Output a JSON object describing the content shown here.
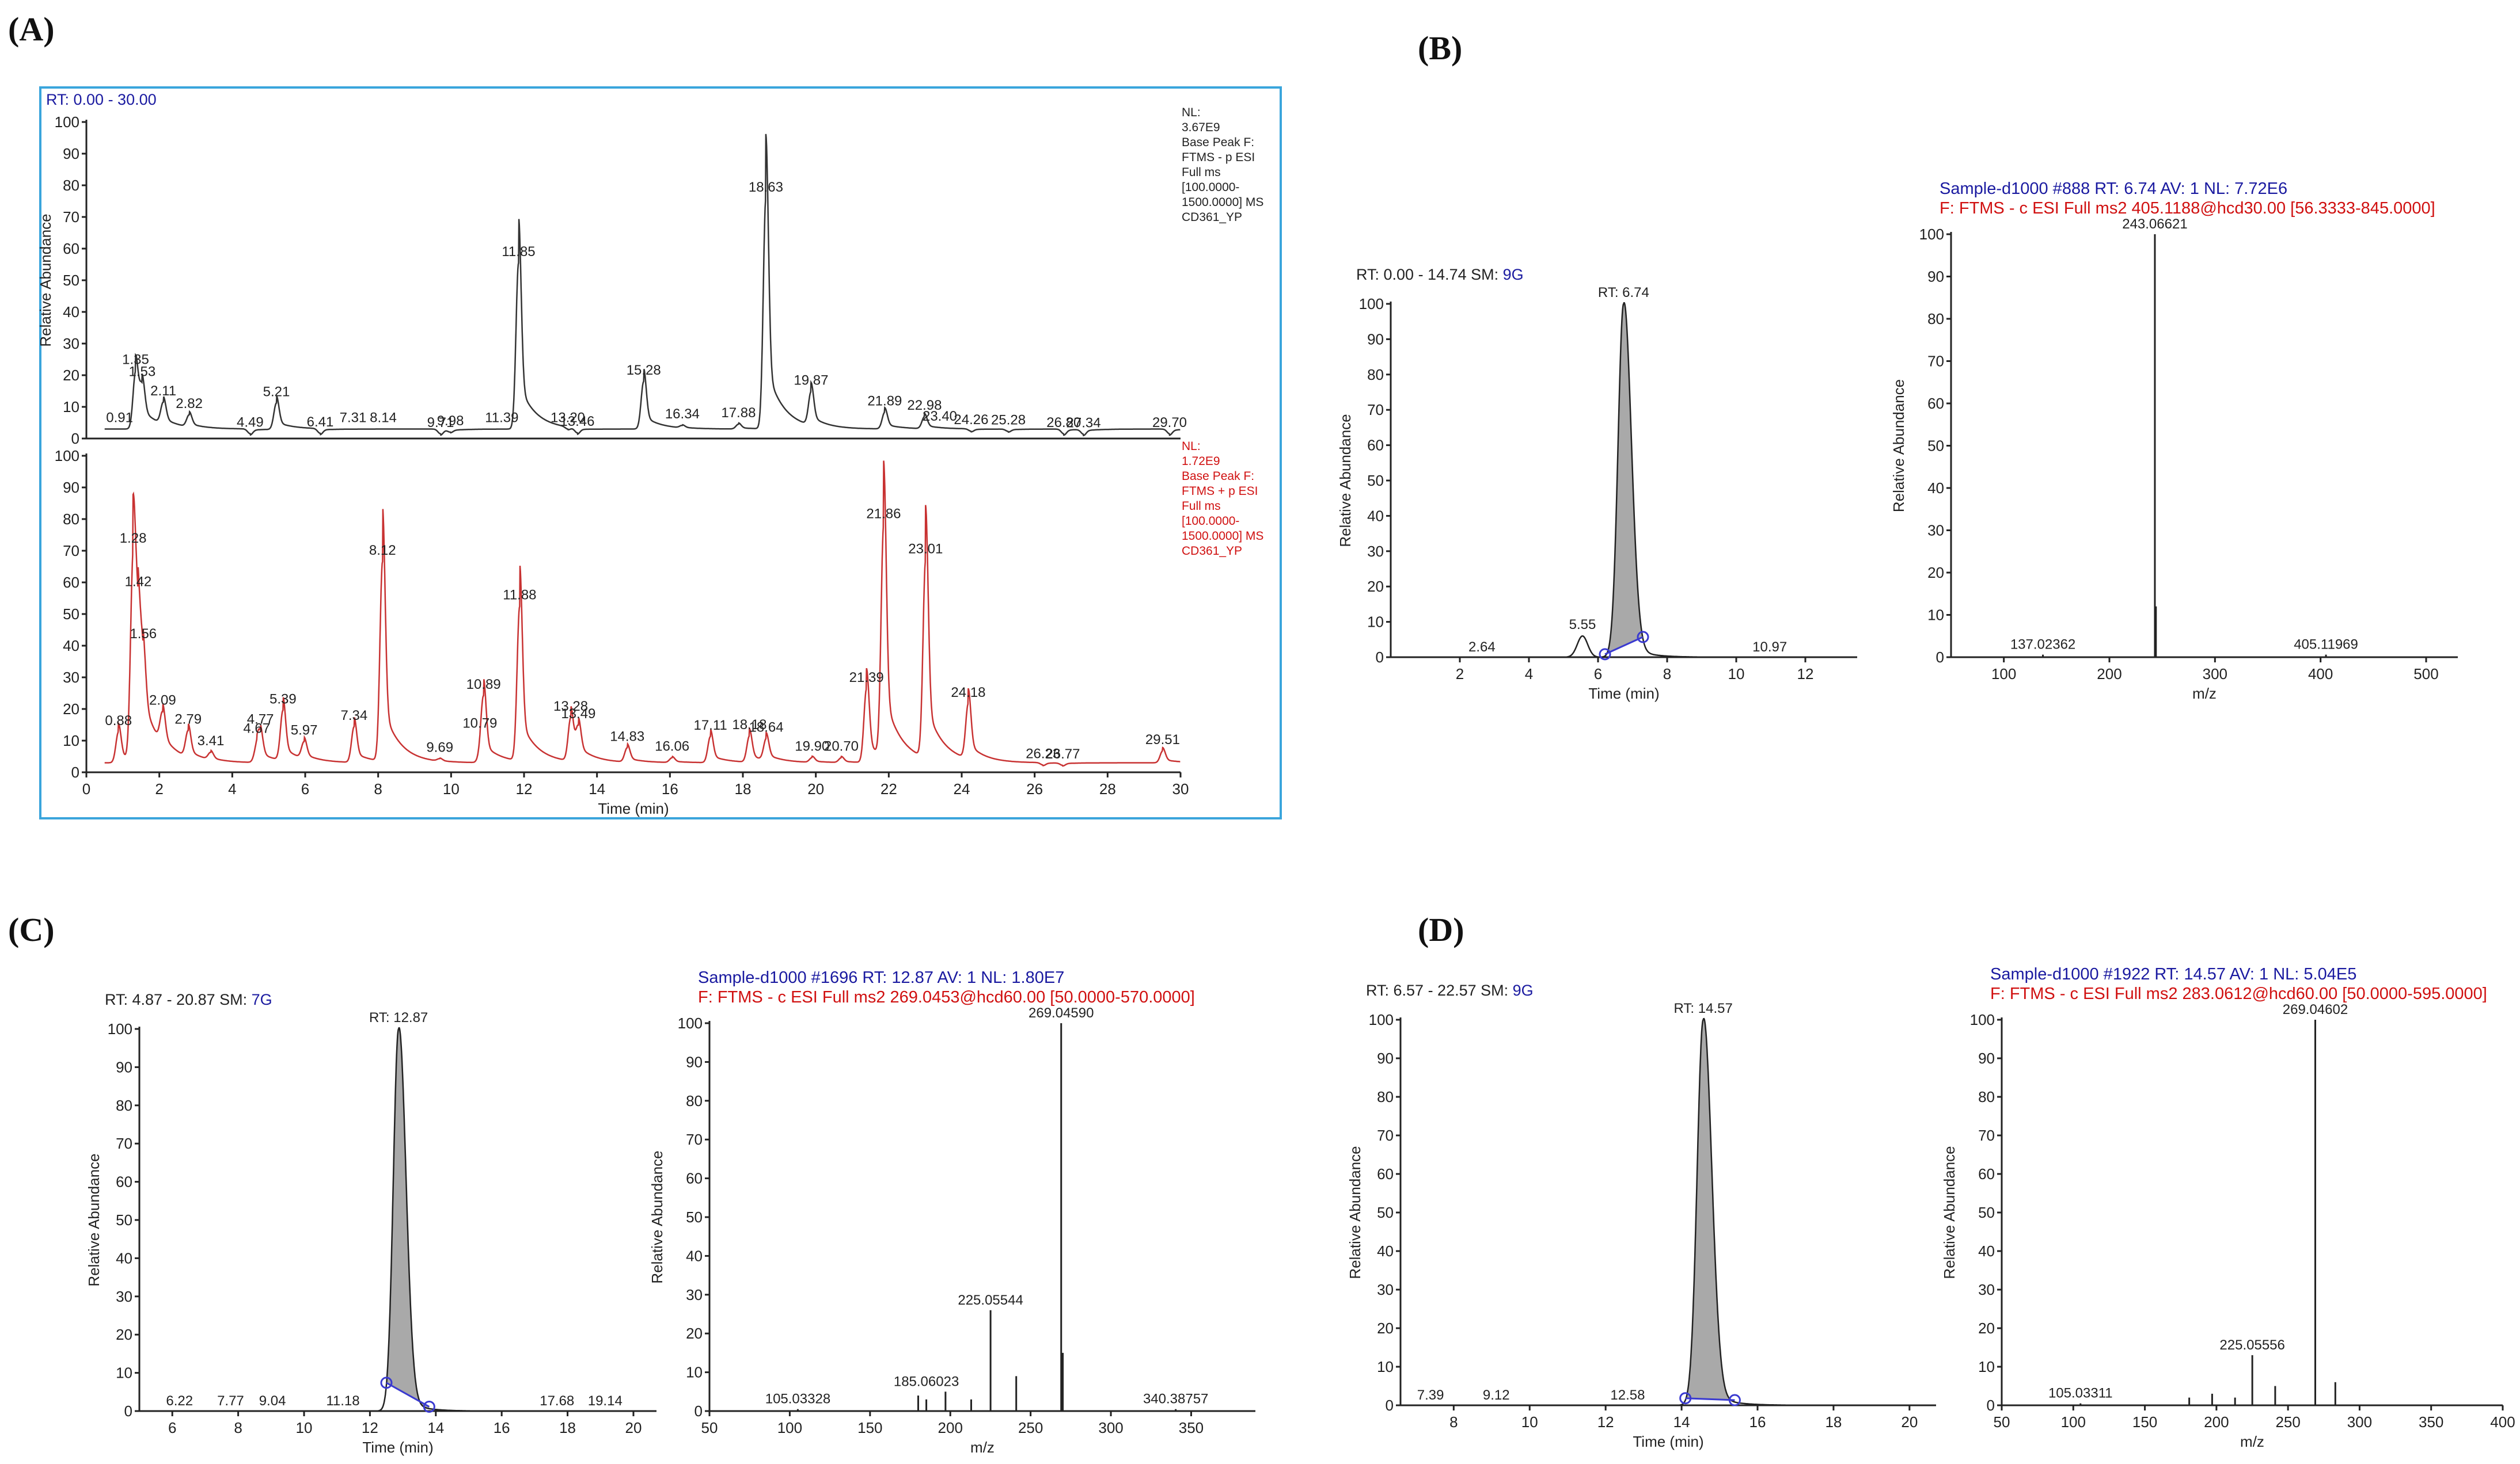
{
  "panel_labels": [
    "(A)",
    "(B)",
    "(C)",
    "(D)"
  ],
  "chart_data": [
    {
      "id": "A_top",
      "type": "line",
      "range_text": "RT: 0.00 - 30.00",
      "ylabel": "Relative Abundance",
      "xlabel": "",
      "xlim": [
        0,
        30
      ],
      "ylim": [
        0,
        100
      ],
      "yticks": [
        0,
        10,
        20,
        30,
        40,
        50,
        60,
        70,
        80,
        90,
        100
      ],
      "info_lines": [
        "NL:",
        "3.67E9",
        "Base Peak F:",
        "FTMS - p ESI",
        "Full ms",
        "[100.0000-",
        "1500.0000]  MS",
        "CD361_YP"
      ],
      "color": "#333333",
      "baseline": 3,
      "peaks": [
        [
          0.91,
          3
        ],
        [
          1.35,
          27
        ],
        [
          1.53,
          17
        ],
        [
          2.11,
          12
        ],
        [
          2.82,
          8
        ],
        [
          4.49,
          1
        ],
        [
          5.21,
          14
        ],
        [
          6.41,
          1
        ],
        [
          7.31,
          3
        ],
        [
          8.14,
          3
        ],
        [
          9.71,
          1
        ],
        [
          9.98,
          2
        ],
        [
          11.39,
          3
        ],
        [
          11.85,
          73
        ],
        [
          13.2,
          2
        ],
        [
          13.46,
          1
        ],
        [
          15.28,
          23
        ],
        [
          16.34,
          4
        ],
        [
          17.88,
          5
        ],
        [
          18.63,
          100
        ],
        [
          19.87,
          17
        ],
        [
          21.89,
          10
        ],
        [
          22.98,
          8
        ],
        [
          23.4,
          3
        ],
        [
          24.26,
          2
        ],
        [
          25.28,
          2
        ],
        [
          26.8,
          1
        ],
        [
          27.34,
          1
        ],
        [
          29.7,
          1
        ]
      ],
      "labels": [
        [
          0.91,
          "0.91"
        ],
        [
          1.35,
          "1.35"
        ],
        [
          1.53,
          "1.53"
        ],
        [
          2.11,
          "2.11"
        ],
        [
          2.82,
          "2.82"
        ],
        [
          4.49,
          "4.49"
        ],
        [
          5.21,
          "5.21"
        ],
        [
          6.41,
          "6.41"
        ],
        [
          7.31,
          "7.31"
        ],
        [
          8.14,
          "8.14"
        ],
        [
          9.71,
          "9.71"
        ],
        [
          9.98,
          "9.98"
        ],
        [
          11.39,
          "11.39"
        ],
        [
          11.85,
          "11.85"
        ],
        [
          13.2,
          "13.20"
        ],
        [
          13.46,
          "13.46"
        ],
        [
          15.28,
          "15.28"
        ],
        [
          16.34,
          "16.34"
        ],
        [
          17.88,
          "17.88"
        ],
        [
          18.63,
          "18.63"
        ],
        [
          19.87,
          "19.87"
        ],
        [
          21.89,
          "21.89"
        ],
        [
          22.98,
          "22.98"
        ],
        [
          23.4,
          "23.40"
        ],
        [
          24.26,
          "24.26"
        ],
        [
          25.28,
          "25.28"
        ],
        [
          26.8,
          "26.80"
        ],
        [
          27.34,
          "27.34"
        ],
        [
          29.7,
          "29.70"
        ]
      ]
    },
    {
      "id": "A_bottom",
      "type": "line",
      "range_text": "",
      "ylabel": "",
      "xlabel": "Time (min)",
      "xlim": [
        0,
        30
      ],
      "ylim": [
        0,
        100
      ],
      "xticks": [
        0,
        2,
        4,
        6,
        8,
        10,
        12,
        14,
        16,
        18,
        20,
        22,
        24,
        26,
        28,
        30
      ],
      "yticks": [
        0,
        10,
        20,
        30,
        40,
        50,
        60,
        70,
        80,
        90,
        100
      ],
      "info_lines": [
        "NL:",
        "1.72E9",
        "Base Peak F:",
        "FTMS + p ESI",
        "Full ms",
        "[100.0000-",
        "1500.0000]  MS",
        "CD361_YP"
      ],
      "color": "#c83232",
      "baseline": 3,
      "peaks": [
        [
          0.88,
          16
        ],
        [
          1.28,
          86
        ],
        [
          1.42,
          42
        ],
        [
          1.56,
          26
        ],
        [
          2.09,
          16
        ],
        [
          2.79,
          14
        ],
        [
          3.41,
          6
        ],
        [
          4.67,
          9
        ],
        [
          4.77,
          13
        ],
        [
          5.39,
          24
        ],
        [
          5.97,
          10
        ],
        [
          7.34,
          18
        ],
        [
          8.12,
          87
        ],
        [
          9.69,
          4
        ],
        [
          10.79,
          5
        ],
        [
          10.89,
          30
        ],
        [
          11.88,
          68
        ],
        [
          13.28,
          21
        ],
        [
          13.49,
          15
        ],
        [
          14.83,
          9
        ],
        [
          16.06,
          5
        ],
        [
          17.11,
          14
        ],
        [
          18.18,
          14
        ],
        [
          18.64,
          12
        ],
        [
          19.9,
          5
        ],
        [
          20.7,
          5
        ],
        [
          21.39,
          34
        ],
        [
          21.86,
          100
        ],
        [
          23.01,
          86
        ],
        [
          24.18,
          26
        ],
        [
          26.23,
          2
        ],
        [
          26.77,
          2
        ],
        [
          29.51,
          8
        ]
      ],
      "labels": [
        [
          0.88,
          "0.88"
        ],
        [
          1.28,
          "1.28"
        ],
        [
          1.42,
          "1.42"
        ],
        [
          1.56,
          "1.56"
        ],
        [
          2.09,
          "2.09"
        ],
        [
          2.79,
          "2.79"
        ],
        [
          3.41,
          "3.41"
        ],
        [
          4.67,
          "4.67"
        ],
        [
          4.77,
          "4.77"
        ],
        [
          5.39,
          "5.39"
        ],
        [
          5.97,
          "5.97"
        ],
        [
          7.34,
          "7.34"
        ],
        [
          8.12,
          "8.12"
        ],
        [
          9.69,
          "9.69"
        ],
        [
          10.79,
          "10.79"
        ],
        [
          10.89,
          "10.89"
        ],
        [
          11.88,
          "11.88"
        ],
        [
          13.28,
          "13.28"
        ],
        [
          13.49,
          "13.49"
        ],
        [
          14.83,
          "14.83"
        ],
        [
          16.06,
          "16.06"
        ],
        [
          17.11,
          "17.11"
        ],
        [
          18.18,
          "18.18"
        ],
        [
          18.64,
          "18.64"
        ],
        [
          19.9,
          "19.90"
        ],
        [
          20.7,
          "20.70"
        ],
        [
          21.39,
          "21.39"
        ],
        [
          21.86,
          "21.86"
        ],
        [
          23.01,
          "23.01"
        ],
        [
          24.18,
          "24.18"
        ],
        [
          26.23,
          "26.23"
        ],
        [
          26.77,
          "26.77"
        ],
        [
          29.51,
          "29.51"
        ]
      ]
    },
    {
      "id": "B_chrom",
      "type": "line",
      "header": [
        {
          "text": "RT: 0.00 - 14.74",
          "color": "dark"
        },
        {
          "text": "   SM: ",
          "color": "dark"
        },
        {
          "text": "9G",
          "color": "blue"
        }
      ],
      "ylabel": "Relative Abundance",
      "xlabel": "Time (min)",
      "xlim": [
        0,
        13.5
      ],
      "ylim": [
        0,
        100
      ],
      "xticks": [
        2,
        4,
        6,
        8,
        10,
        12
      ],
      "yticks": [
        0,
        10,
        20,
        30,
        40,
        50,
        60,
        70,
        80,
        90,
        100
      ],
      "main_peak": {
        "rt": 6.74,
        "label": "RT: 6.74",
        "height": 100
      },
      "minor_peaks": [
        [
          5.55,
          6,
          "5.55"
        ]
      ],
      "floor_labels": [
        [
          2.64,
          "2.64"
        ],
        [
          10.97,
          "10.97"
        ]
      ],
      "integration": [
        6.2,
        7.3
      ]
    },
    {
      "id": "B_spec",
      "type": "bar",
      "header": [
        {
          "text": "Sample-d1000 #888   RT: ",
          "color": "blue"
        },
        {
          "text": "6.74",
          "color": "blue"
        },
        {
          "text": "   AV: ",
          "color": "blue"
        },
        {
          "text": "1",
          "color": "blue"
        },
        {
          "text": "   NL: ",
          "color": "blue"
        },
        {
          "text": "7.72E6",
          "color": "blue"
        }
      ],
      "subheader": "F:  FTMS - c ESI Full ms2 405.1188@hcd30.00 [56.3333-845.0000]",
      "ylabel": "Relative Abundance",
      "xlabel": "m/z",
      "xlim": [
        50,
        530
      ],
      "ylim": [
        0,
        100
      ],
      "xticks": [
        100,
        200,
        300,
        400,
        500
      ],
      "yticks": [
        0,
        10,
        20,
        30,
        40,
        50,
        60,
        70,
        80,
        90,
        100
      ],
      "sticks": [
        [
          243.06621,
          100
        ],
        [
          244.07,
          12
        ],
        [
          137.02362,
          0.6
        ],
        [
          405.11969,
          0.6
        ]
      ],
      "labels": [
        [
          243.06621,
          "243.06621",
          100
        ],
        [
          137.02362,
          "137.02362",
          0.6
        ],
        [
          405.11969,
          "405.11969",
          0.6
        ]
      ]
    },
    {
      "id": "C_chrom",
      "type": "line",
      "header": [
        {
          "text": "RT: 4.87 - 20.87",
          "color": "dark"
        },
        {
          "text": "   SM: ",
          "color": "dark"
        },
        {
          "text": "7G",
          "color": "blue"
        }
      ],
      "ylabel": "Relative Abundance",
      "xlabel": "Time (min)",
      "xlim": [
        5,
        20.7
      ],
      "ylim": [
        0,
        100
      ],
      "xticks": [
        6,
        8,
        10,
        12,
        14,
        16,
        18,
        20
      ],
      "yticks": [
        0,
        10,
        20,
        30,
        40,
        50,
        60,
        70,
        80,
        90,
        100
      ],
      "main_peak": {
        "rt": 12.87,
        "label": "RT: 12.87",
        "height": 100
      },
      "minor_peaks": [],
      "floor_labels": [
        [
          6.22,
          "6.22"
        ],
        [
          7.77,
          "7.77"
        ],
        [
          9.04,
          "9.04"
        ],
        [
          11.18,
          "11.18"
        ],
        [
          17.68,
          "17.68"
        ],
        [
          19.14,
          "19.14"
        ]
      ],
      "integration": [
        12.5,
        13.8
      ]
    },
    {
      "id": "C_spec",
      "type": "bar",
      "header": [
        {
          "text": "Sample-d1000 #1696   RT: ",
          "color": "blue"
        },
        {
          "text": "12.87",
          "color": "blue"
        },
        {
          "text": "   AV: ",
          "color": "blue"
        },
        {
          "text": "1",
          "color": "blue"
        },
        {
          "text": "   NL: ",
          "color": "blue"
        },
        {
          "text": "1.80E7",
          "color": "blue"
        }
      ],
      "subheader": "F:  FTMS - c ESI Full ms2 269.0453@hcd60.00 [50.0000-570.0000]",
      "ylabel": "Relative Abundance",
      "xlabel": "m/z",
      "xlim": [
        50,
        390
      ],
      "ylim": [
        0,
        100
      ],
      "xticks": [
        50,
        100,
        150,
        200,
        250,
        300,
        350
      ],
      "yticks": [
        0,
        10,
        20,
        30,
        40,
        50,
        60,
        70,
        80,
        90,
        100
      ],
      "sticks": [
        [
          269.0459,
          100
        ],
        [
          225.05544,
          26
        ],
        [
          270.05,
          15
        ],
        [
          241.05,
          9
        ],
        [
          185.06023,
          3
        ],
        [
          180.0,
          4
        ],
        [
          197.0,
          5
        ],
        [
          213.0,
          3
        ],
        [
          105.03328,
          0.5
        ],
        [
          340.38757,
          0.5
        ]
      ],
      "labels": [
        [
          269.0459,
          "269.04590",
          100
        ],
        [
          225.05544,
          "225.05544",
          26
        ],
        [
          185.06023,
          "185.06023",
          5
        ],
        [
          105.03328,
          "105.03328",
          0.5
        ],
        [
          340.38757,
          "340.38757",
          0.5
        ]
      ]
    },
    {
      "id": "D_chrom",
      "type": "line",
      "header": [
        {
          "text": "RT: 6.57 - 22.57",
          "color": "dark"
        },
        {
          "text": "   SM: ",
          "color": "dark"
        },
        {
          "text": "9G",
          "color": "blue"
        }
      ],
      "ylabel": "Relative Abundance",
      "xlabel": "Time (min)",
      "xlim": [
        6.6,
        20.7
      ],
      "ylim": [
        0,
        100
      ],
      "xticks": [
        8,
        10,
        12,
        14,
        16,
        18,
        20
      ],
      "yticks": [
        0,
        10,
        20,
        30,
        40,
        50,
        60,
        70,
        80,
        90,
        100
      ],
      "main_peak": {
        "rt": 14.57,
        "label": "RT: 14.57",
        "height": 100
      },
      "minor_peaks": [],
      "floor_labels": [
        [
          7.39,
          "7.39"
        ],
        [
          9.12,
          "9.12"
        ],
        [
          12.58,
          "12.58"
        ]
      ],
      "integration": [
        14.1,
        15.4
      ]
    },
    {
      "id": "D_spec",
      "type": "bar",
      "header": [
        {
          "text": "Sample-d1000 #1922   RT: ",
          "color": "blue"
        },
        {
          "text": "14.57",
          "color": "blue"
        },
        {
          "text": "   AV: ",
          "color": "blue"
        },
        {
          "text": "1",
          "color": "blue"
        },
        {
          "text": "   NL: ",
          "color": "blue"
        },
        {
          "text": "5.04E5",
          "color": "blue"
        }
      ],
      "subheader": "F:  FTMS - c ESI Full ms2 283.0612@hcd60.00 [50.0000-595.0000]",
      "ylabel": "Relative Abundance",
      "xlabel": "m/z",
      "xlim": [
        50,
        400
      ],
      "ylim": [
        0,
        100
      ],
      "xticks": [
        50,
        100,
        150,
        200,
        250,
        300,
        350,
        400
      ],
      "yticks": [
        0,
        10,
        20,
        30,
        40,
        50,
        60,
        70,
        80,
        90,
        100
      ],
      "sticks": [
        [
          269.04602,
          100
        ],
        [
          225.05556,
          13
        ],
        [
          283.06,
          6
        ],
        [
          241.05,
          5
        ],
        [
          197.0,
          3
        ],
        [
          181.0,
          2
        ],
        [
          213.0,
          2
        ],
        [
          105.03311,
          0.5
        ]
      ],
      "labels": [
        [
          269.04602,
          "269.04602",
          100
        ],
        [
          225.05556,
          "225.05556",
          13
        ],
        [
          105.03311,
          "105.03311",
          0.5
        ]
      ]
    }
  ]
}
